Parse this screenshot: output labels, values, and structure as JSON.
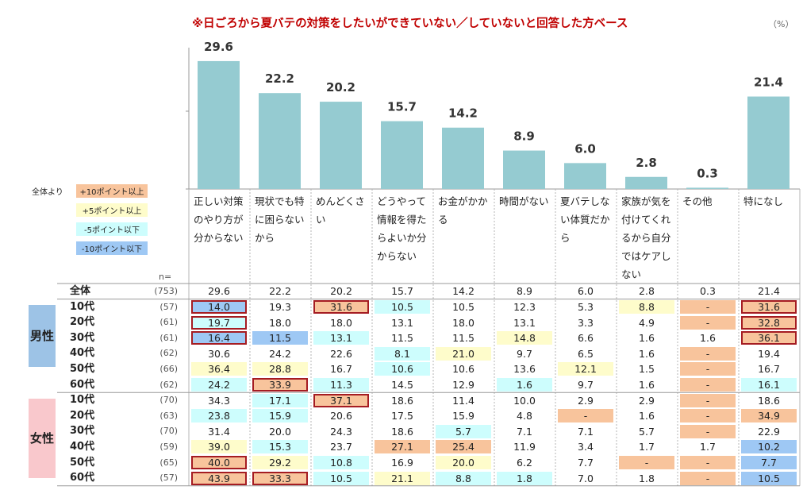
{
  "header": {
    "title": "※日ごろから夏バテの対策をしたいができていない／していないと回答した方ベース",
    "unit": "（%）"
  },
  "legend": {
    "caption": "全体より",
    "items": [
      {
        "label": "+10ポイント以上",
        "color": "#f8c49c"
      },
      {
        "label": "+5ポイント以上",
        "color": "#fefccb"
      },
      {
        "label": "-5ポイント以下",
        "color": "#cdfdfd"
      },
      {
        "label": "-10ポイント以下",
        "color": "#9ec8f4"
      }
    ]
  },
  "n_caption": "n=",
  "gender_labels": {
    "male": "男性",
    "female": "女性"
  },
  "colors": {
    "bar": "#95cbd1",
    "highlight_border": "#a51c22",
    "male_bg": "#9dc3e6",
    "female_bg": "#f9c8cc",
    "up10": "#f8c49c",
    "up5": "#fefccb",
    "down5": "#cdfdfd",
    "down10": "#9ec8f4"
  },
  "chart_data": {
    "type": "bar",
    "title": "※日ごろから夏バテの対策をしたいができていない／していないと回答した方ベース",
    "unit": "%",
    "categories": [
      "正しい対策のやり方が分からない",
      "現状でも特に困らないから",
      "めんどくさい",
      "どうやって情報を得たらよいか分からない",
      "お金がかかる",
      "時間がない",
      "夏バテしない体質だから",
      "家族が気を付けてくれるから自分ではケアしない",
      "その他",
      "特になし"
    ],
    "values": [
      29.6,
      22.2,
      20.2,
      15.7,
      14.2,
      8.9,
      6.0,
      2.8,
      0.3,
      21.4
    ],
    "value_labels": [
      "29.6",
      "22.2",
      "20.2",
      "15.7",
      "14.2",
      "8.9",
      "6.0",
      "2.8",
      "0.3",
      "21.4"
    ],
    "ylim": [
      0,
      35
    ],
    "table": {
      "rows": [
        {
          "label": "全体",
          "n": "(753)",
          "group": "total",
          "values": [
            "29.6",
            "22.2",
            "20.2",
            "15.7",
            "14.2",
            "8.9",
            "6.0",
            "2.8",
            "0.3",
            "21.4"
          ],
          "shade": [
            "",
            "",
            "",
            "",
            "",
            "",
            "",
            "",
            "",
            ""
          ],
          "boxed": [
            false,
            false,
            false,
            false,
            false,
            false,
            false,
            false,
            false,
            false
          ]
        },
        {
          "label": "10代",
          "n": "(57)",
          "group": "male",
          "values": [
            "14.0",
            "19.3",
            "31.6",
            "10.5",
            "10.5",
            "12.3",
            "5.3",
            "8.8",
            "-",
            "31.6"
          ],
          "shade": [
            "down10",
            "",
            "up10",
            "down5",
            "",
            "",
            "",
            "up5",
            "up10",
            "up10"
          ],
          "boxed": [
            true,
            false,
            true,
            false,
            false,
            false,
            false,
            false,
            false,
            true
          ]
        },
        {
          "label": "20代",
          "n": "(61)",
          "group": "male",
          "values": [
            "19.7",
            "18.0",
            "18.0",
            "13.1",
            "18.0",
            "13.1",
            "3.3",
            "4.9",
            "-",
            "32.8"
          ],
          "shade": [
            "down5",
            "",
            "",
            "",
            "",
            "",
            "",
            "",
            "up10",
            "up10"
          ],
          "boxed": [
            true,
            false,
            false,
            false,
            false,
            false,
            false,
            false,
            false,
            true
          ]
        },
        {
          "label": "30代",
          "n": "(61)",
          "group": "male",
          "values": [
            "16.4",
            "11.5",
            "13.1",
            "11.5",
            "11.5",
            "14.8",
            "6.6",
            "1.6",
            "1.6",
            "36.1"
          ],
          "shade": [
            "down10",
            "down10",
            "down5",
            "",
            "",
            "up5",
            "",
            "",
            "",
            "up10"
          ],
          "boxed": [
            true,
            false,
            false,
            false,
            false,
            false,
            false,
            false,
            false,
            true
          ]
        },
        {
          "label": "40代",
          "n": "(62)",
          "group": "male",
          "values": [
            "30.6",
            "24.2",
            "22.6",
            "8.1",
            "21.0",
            "9.7",
            "6.5",
            "1.6",
            "-",
            "19.4"
          ],
          "shade": [
            "",
            "",
            "",
            "down5",
            "up5",
            "",
            "",
            "",
            "up10",
            ""
          ],
          "boxed": [
            false,
            false,
            false,
            false,
            false,
            false,
            false,
            false,
            false,
            false
          ]
        },
        {
          "label": "50代",
          "n": "(66)",
          "group": "male",
          "values": [
            "36.4",
            "28.8",
            "16.7",
            "10.6",
            "10.6",
            "13.6",
            "12.1",
            "1.5",
            "-",
            "16.7"
          ],
          "shade": [
            "up5",
            "up5",
            "",
            "down5",
            "",
            "",
            "up5",
            "",
            "up10",
            ""
          ],
          "boxed": [
            false,
            false,
            false,
            false,
            false,
            false,
            false,
            false,
            false,
            false
          ]
        },
        {
          "label": "60代",
          "n": "(62)",
          "group": "male",
          "values": [
            "24.2",
            "33.9",
            "11.3",
            "14.5",
            "12.9",
            "1.6",
            "9.7",
            "1.6",
            "-",
            "16.1"
          ],
          "shade": [
            "down5",
            "up10",
            "down5",
            "",
            "",
            "down5",
            "",
            "",
            "up10",
            "down5"
          ],
          "boxed": [
            false,
            true,
            false,
            false,
            false,
            false,
            false,
            false,
            false,
            false
          ]
        },
        {
          "label": "10代",
          "n": "(70)",
          "group": "female",
          "values": [
            "34.3",
            "17.1",
            "37.1",
            "18.6",
            "11.4",
            "10.0",
            "2.9",
            "2.9",
            "-",
            "18.6"
          ],
          "shade": [
            "",
            "down5",
            "up10",
            "",
            "",
            "",
            "",
            "",
            "up10",
            ""
          ],
          "boxed": [
            false,
            false,
            true,
            false,
            false,
            false,
            false,
            false,
            false,
            false
          ]
        },
        {
          "label": "20代",
          "n": "(63)",
          "group": "female",
          "values": [
            "23.8",
            "15.9",
            "20.6",
            "17.5",
            "15.9",
            "4.8",
            "-",
            "1.6",
            "-",
            "34.9"
          ],
          "shade": [
            "down5",
            "down5",
            "",
            "",
            "",
            "",
            "up10",
            "",
            "up10",
            "up10"
          ],
          "boxed": [
            false,
            false,
            false,
            false,
            false,
            false,
            false,
            false,
            false,
            false
          ]
        },
        {
          "label": "30代",
          "n": "(70)",
          "group": "female",
          "values": [
            "31.4",
            "20.0",
            "24.3",
            "18.6",
            "5.7",
            "7.1",
            "7.1",
            "5.7",
            "-",
            "22.9"
          ],
          "shade": [
            "",
            "",
            "",
            "",
            "down5",
            "",
            "",
            "",
            "up10",
            ""
          ],
          "boxed": [
            false,
            false,
            false,
            false,
            false,
            false,
            false,
            false,
            false,
            false
          ]
        },
        {
          "label": "40代",
          "n": "(59)",
          "group": "female",
          "values": [
            "39.0",
            "15.3",
            "23.7",
            "27.1",
            "25.4",
            "11.9",
            "3.4",
            "1.7",
            "1.7",
            "10.2"
          ],
          "shade": [
            "up5",
            "down5",
            "",
            "up10",
            "up10",
            "",
            "",
            "",
            "",
            "down10"
          ],
          "boxed": [
            false,
            false,
            false,
            false,
            false,
            false,
            false,
            false,
            false,
            false
          ]
        },
        {
          "label": "50代",
          "n": "(65)",
          "group": "female",
          "values": [
            "40.0",
            "29.2",
            "10.8",
            "16.9",
            "20.0",
            "6.2",
            "7.7",
            "-",
            "-",
            "7.7"
          ],
          "shade": [
            "up10",
            "up5",
            "down5",
            "",
            "up5",
            "",
            "",
            "up10",
            "up10",
            "down10"
          ],
          "boxed": [
            true,
            false,
            false,
            false,
            false,
            false,
            false,
            false,
            false,
            false
          ]
        },
        {
          "label": "60代",
          "n": "(57)",
          "group": "female",
          "values": [
            "43.9",
            "33.3",
            "10.5",
            "21.1",
            "8.8",
            "1.8",
            "7.0",
            "1.8",
            "-",
            "10.5"
          ],
          "shade": [
            "up10",
            "up10",
            "down5",
            "up5",
            "down5",
            "down5",
            "",
            "",
            "up10",
            "down10"
          ],
          "boxed": [
            true,
            true,
            false,
            false,
            false,
            false,
            false,
            false,
            false,
            false
          ]
        }
      ]
    }
  }
}
